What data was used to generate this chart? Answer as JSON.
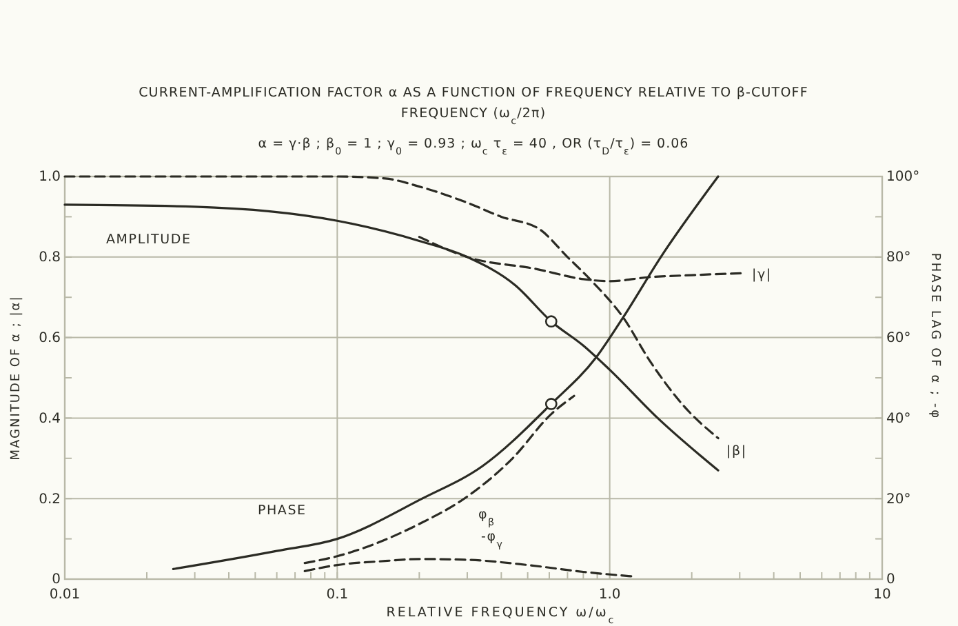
{
  "chart_data": {
    "type": "line",
    "title": "CURRENT-AMPLIFICATION FACTOR α AS A FUNCTION OF FREQUENCY RELATIVE TO β-CUTOFF FREQUENCY (ω$_{c}$/2π)",
    "subtitle": "α = γ·β ;  β$_{0}$ = 1 ;  γ$_{0}$ = 0.93 ;  ω$_{c}$ τ$_{ε}$ = 40 , OR (τ$_{D}$/τ$_{ε}$) = 0.06",
    "xlabel": "RELATIVE FREQUENCY ω/ω$_{c}$",
    "ylabel": "MAGNITUDE OF α ; |α|",
    "y2label": "PHASE LAG OF α ; -φ",
    "log": "x",
    "grid": true,
    "xlim": [
      0.01,
      10
    ],
    "ylim": [
      0,
      1
    ],
    "y2lim": [
      0,
      100
    ],
    "xticks": [
      {
        "value": 0.01,
        "label": "0.01"
      },
      {
        "value": 0.02,
        "label": null
      },
      {
        "value": 0.03,
        "label": null
      },
      {
        "value": 0.04,
        "label": null
      },
      {
        "value": 0.05,
        "label": null
      },
      {
        "value": 0.06,
        "label": null
      },
      {
        "value": 0.07,
        "label": null
      },
      {
        "value": 0.08,
        "label": null
      },
      {
        "value": 0.09,
        "label": null
      },
      {
        "value": 0.1,
        "label": "0.1"
      },
      {
        "value": 0.2,
        "label": null
      },
      {
        "value": 0.3,
        "label": null
      },
      {
        "value": 0.4,
        "label": null
      },
      {
        "value": 0.5,
        "label": null
      },
      {
        "value": 0.6,
        "label": null
      },
      {
        "value": 0.7,
        "label": null
      },
      {
        "value": 0.8,
        "label": null
      },
      {
        "value": 0.9,
        "label": null
      },
      {
        "value": 1,
        "label": "1.0"
      },
      {
        "value": 2,
        "label": null
      },
      {
        "value": 3,
        "label": null
      },
      {
        "value": 4,
        "label": null
      },
      {
        "value": 5,
        "label": null
      },
      {
        "value": 6,
        "label": null
      },
      {
        "value": 7,
        "label": null
      },
      {
        "value": 8,
        "label": null
      },
      {
        "value": 9,
        "label": null
      },
      {
        "value": 10,
        "label": "10"
      }
    ],
    "yticks": [
      0,
      {
        "value": 0.1,
        "label": null
      },
      0.2,
      {
        "value": 0.3,
        "label": null
      },
      0.4,
      {
        "value": 0.5,
        "label": null
      },
      0.6,
      {
        "value": 0.7,
        "label": null
      },
      0.8,
      {
        "value": 0.9,
        "label": null
      },
      {
        "value": 1,
        "label": "1.0"
      }
    ],
    "y2ticks": [
      0,
      {
        "value": 10,
        "label": null
      },
      {
        "value": 20,
        "label": "20°"
      },
      {
        "value": 30,
        "label": null
      },
      {
        "value": 40,
        "label": "40°"
      },
      {
        "value": 50,
        "label": null
      },
      {
        "value": 60,
        "label": "60°"
      },
      {
        "value": 70,
        "label": null
      },
      {
        "value": 80,
        "label": "80°"
      },
      {
        "value": 90,
        "label": null
      },
      {
        "value": 100,
        "label": "100°"
      }
    ],
    "series": [
      {
        "name": "AMPLITUDE",
        "color": "#2b2b24",
        "line_style": "solid",
        "x": [
          0.01,
          0.03,
          0.1,
          0.2,
          0.3,
          0.45,
          0.61,
          0.8,
          1.0,
          1.5,
          2.5
        ],
        "values": [
          0.93,
          0.925,
          0.89,
          0.84,
          0.8,
          0.73,
          0.64,
          0.58,
          0.52,
          0.4,
          0.27
        ]
      },
      {
        "name": "|β|",
        "color": "#2b2b24",
        "line_style": "dashed",
        "x": [
          0.01,
          0.1,
          0.15,
          0.2,
          0.3,
          0.4,
          0.55,
          0.7,
          0.86,
          1.12,
          1.41,
          1.87,
          2.5
        ],
        "values": [
          1.0,
          1.0,
          0.995,
          0.975,
          0.935,
          0.9,
          0.87,
          0.8,
          0.74,
          0.65,
          0.54,
          0.43,
          0.35
        ]
      },
      {
        "name": "|γ|",
        "color": "#2b2b24",
        "line_style": "dashed",
        "x": [
          0.2,
          0.3,
          0.54,
          0.8,
          1.0,
          1.4,
          2.0,
          3.1
        ],
        "values": [
          0.85,
          0.8,
          0.77,
          0.745,
          0.74,
          0.75,
          0.755,
          0.76
        ]
      },
      {
        "name": "PHASE",
        "color": "#2b2b24",
        "line_style": "solid",
        "axis": "y2",
        "x": [
          0.025,
          0.06,
          0.1,
          0.205,
          0.34,
          0.61,
          0.89,
          1.12,
          1.54,
          2.5
        ],
        "values": [
          2.5,
          7,
          10,
          20,
          28,
          43.5,
          55,
          65,
          80,
          100
        ]
      },
      {
        "name": "φ$_{β}$",
        "color": "#2b2b24",
        "line_style": "dashed",
        "axis": "y2",
        "x": [
          0.076,
          0.1,
          0.2,
          0.3,
          0.44,
          0.61,
          0.74
        ],
        "values": [
          4,
          5.7,
          13.7,
          20.5,
          30,
          41,
          45.5
        ]
      },
      {
        "name": "-φ$_{γ}$",
        "color": "#2b2b24",
        "line_style": "dashed",
        "axis": "y2",
        "x": [
          0.076,
          0.1,
          0.15,
          0.2,
          0.3,
          0.5,
          0.8,
          1.2
        ],
        "values": [
          2,
          3.5,
          4.5,
          5,
          4.8,
          3.5,
          1.8,
          0.7
        ]
      },
      {
        "type": "scatter",
        "marker": "circle",
        "color": "#2b2b24",
        "x": [
          0.61
        ],
        "values": [
          0.64
        ]
      },
      {
        "type": "scatter",
        "marker": "circle",
        "color": "#2b2b24",
        "axis": "y2",
        "x": [
          0.61
        ],
        "values": [
          43.5
        ]
      }
    ]
  }
}
